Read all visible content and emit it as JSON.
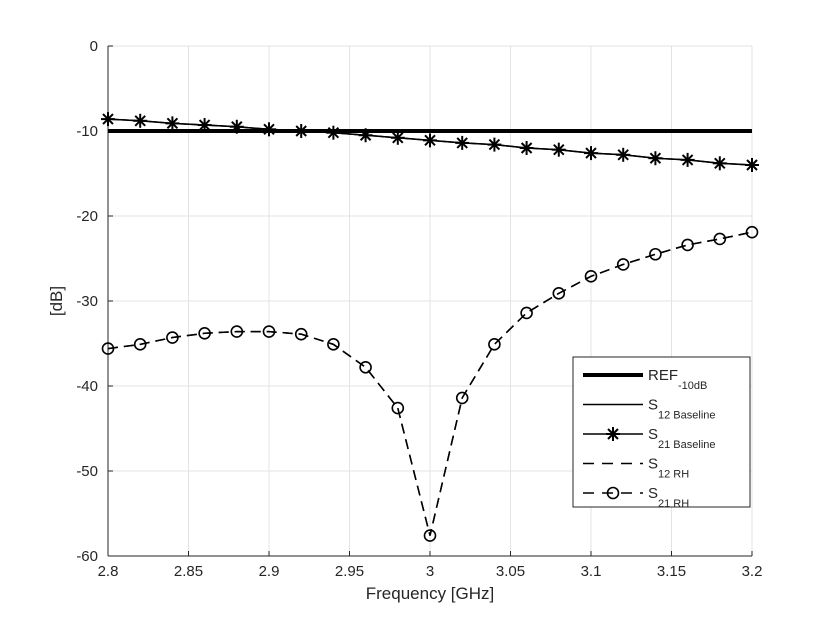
{
  "chart_data": {
    "type": "line",
    "title": "",
    "xlabel": "Frequency [GHz]",
    "ylabel": "[dB]",
    "xlim": [
      2.8,
      3.2
    ],
    "ylim": [
      -60,
      0
    ],
    "grid": true,
    "xticks": [
      "2.8",
      "2.85",
      "2.9",
      "2.95",
      "3",
      "3.05",
      "3.1",
      "3.15",
      "3.2"
    ],
    "yticks": [
      "0",
      "-10",
      "-20",
      "-30",
      "-40",
      "-50",
      "-60"
    ],
    "legend_position": "bottom-right",
    "x": [
      2.8,
      2.82,
      2.84,
      2.86,
      2.88,
      2.9,
      2.92,
      2.94,
      2.96,
      2.98,
      3.0,
      3.02,
      3.04,
      3.06,
      3.08,
      3.1,
      3.12,
      3.14,
      3.16,
      3.18,
      3.2
    ],
    "series": [
      {
        "name": "REF",
        "sub": "-10dB",
        "style": "thick",
        "values": [
          -10,
          -10,
          -10,
          -10,
          -10,
          -10,
          -10,
          -10,
          -10,
          -10,
          -10,
          -10,
          -10,
          -10,
          -10,
          -10,
          -10,
          -10,
          -10,
          -10,
          -10
        ]
      },
      {
        "name": "S",
        "sub": "12 Baseline",
        "style": "solid",
        "values": [
          -8.6,
          -8.8,
          -9.1,
          -9.3,
          -9.5,
          -9.8,
          -10.0,
          -10.2,
          -10.5,
          -10.8,
          -11.1,
          -11.4,
          -11.6,
          -12.0,
          -12.2,
          -12.6,
          -12.8,
          -13.2,
          -13.4,
          -13.8,
          -14.0
        ]
      },
      {
        "name": "S",
        "sub": "21 Baseline",
        "style": "star",
        "values": [
          -8.6,
          -8.8,
          -9.1,
          -9.3,
          -9.5,
          -9.8,
          -10.0,
          -10.2,
          -10.5,
          -10.8,
          -11.1,
          -11.4,
          -11.6,
          -12.0,
          -12.2,
          -12.6,
          -12.8,
          -13.2,
          -13.4,
          -13.8,
          -14.0
        ]
      },
      {
        "name": "S",
        "sub": "12 RH",
        "style": "dashed",
        "values": [
          -35.6,
          -35.1,
          -34.3,
          -33.8,
          -33.6,
          -33.6,
          -33.9,
          -35.1,
          -37.8,
          -42.6,
          -57.6,
          -41.4,
          -35.1,
          -31.4,
          -29.1,
          -27.1,
          -25.7,
          -24.5,
          -23.4,
          -22.7,
          -21.9
        ]
      },
      {
        "name": "S",
        "sub": "21 RH",
        "style": "dashed-circle",
        "values": [
          -35.6,
          -35.1,
          -34.3,
          -33.8,
          -33.6,
          -33.6,
          -33.9,
          -35.1,
          -37.8,
          -42.6,
          -57.6,
          -41.4,
          -35.1,
          -31.4,
          -29.1,
          -27.1,
          -25.7,
          -24.5,
          -23.4,
          -22.7,
          -21.9
        ]
      }
    ]
  }
}
